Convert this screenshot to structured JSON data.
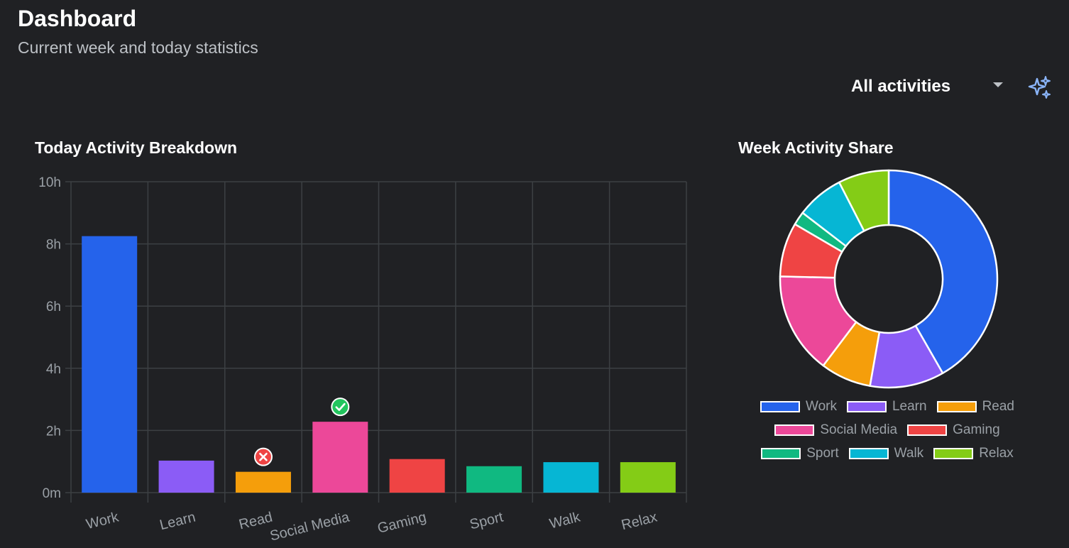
{
  "header": {
    "title": "Dashboard",
    "subtitle": "Current week and today statistics"
  },
  "filter": {
    "selected": "All activities"
  },
  "sections": {
    "today_title": "Today Activity Breakdown",
    "week_title": "Week Activity Share"
  },
  "colors": {
    "background": "#202124",
    "grid": "#3c4043",
    "axis_text": "#9aa0a6",
    "sparkle": "#8ab4f8",
    "goal_met": "#22c55e",
    "goal_missed": "#ef4444"
  },
  "chart_data": [
    {
      "type": "bar",
      "title": "Today Activity Breakdown",
      "categories": [
        "Work",
        "Learn",
        "Read",
        "Social Media",
        "Gaming",
        "Sport",
        "Walk",
        "Relax"
      ],
      "values": [
        8.25,
        1.03,
        0.67,
        2.28,
        1.08,
        0.85,
        0.98,
        0.98
      ],
      "colors": [
        "#2563eb",
        "#8b5cf6",
        "#f59e0b",
        "#ec4899",
        "#ef4444",
        "#10b981",
        "#06b6d4",
        "#84cc16"
      ],
      "ylim": [
        0,
        10
      ],
      "yticks": [
        0,
        2,
        4,
        6,
        8,
        10
      ],
      "ytick_labels": [
        "0m",
        "2h",
        "4h",
        "6h",
        "8h",
        "10h"
      ],
      "grid": true,
      "markers": [
        {
          "category": "Read",
          "status": "missed"
        },
        {
          "category": "Social Media",
          "status": "met"
        }
      ]
    },
    {
      "type": "pie",
      "style": "donut",
      "title": "Week Activity Share",
      "labels": [
        "Work",
        "Learn",
        "Read",
        "Social Media",
        "Gaming",
        "Sport",
        "Walk",
        "Relax"
      ],
      "values": [
        41.5,
        11,
        7.5,
        15,
        8,
        2,
        7,
        7.5
      ],
      "colors": [
        "#2563eb",
        "#8b5cf6",
        "#f59e0b",
        "#ec4899",
        "#ef4444",
        "#10b981",
        "#06b6d4",
        "#84cc16"
      ],
      "legend": "bottom"
    }
  ]
}
